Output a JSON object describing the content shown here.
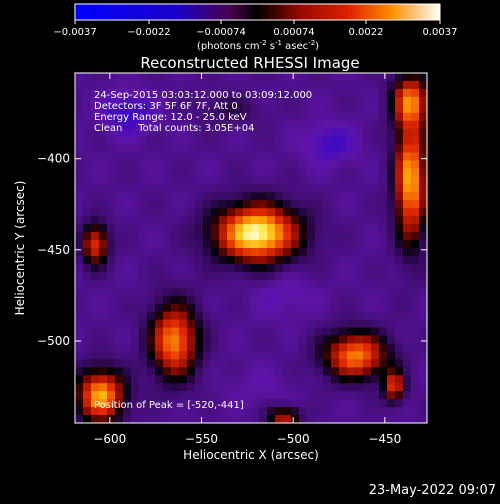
{
  "colorbar": {
    "ticks": [
      "-0.0037",
      "-0.0022",
      "-0.00074",
      "0.00074",
      "0.0022",
      "0.0037"
    ],
    "units_main": "(photons cm",
    "units_sup1": "-2",
    "units_mid": " s",
    "units_sup2": "-1",
    "units_end": " asec",
    "units_sup3": "-2",
    "units_close": ")"
  },
  "chart_data": {
    "type": "heatmap",
    "title": "Reconstructed RHESSI Image",
    "xlabel": "Heliocentric X (arcsec)",
    "ylabel": "Heliocentric Y (arcsec)",
    "xlim": [
      -619,
      -427
    ],
    "ylim": [
      -545,
      -353
    ],
    "value_range": [
      -0.0037,
      0.0037
    ],
    "xticks": [
      -600,
      -550,
      -500,
      -450
    ],
    "yticks": [
      -400,
      -450,
      -500
    ],
    "xtick_labels": [
      "−600",
      "−550",
      "−500",
      "−450"
    ],
    "ytick_labels": [
      "−400",
      "−450",
      "−500"
    ],
    "sources": [
      {
        "x": -520,
        "y": -441,
        "sx": 16,
        "sy": 11,
        "v": 0.0037
      },
      {
        "x": -436,
        "y": -412,
        "sx": 6,
        "sy": 24,
        "v": 0.0028
      },
      {
        "x": -436,
        "y": -368,
        "sx": 7,
        "sy": 10,
        "v": 0.0018
      },
      {
        "x": -565,
        "y": -500,
        "sx": 9,
        "sy": 14,
        "v": 0.0025
      },
      {
        "x": -466,
        "y": -508,
        "sx": 12,
        "sy": 9,
        "v": 0.0024
      },
      {
        "x": -608,
        "y": -447,
        "sx": 5,
        "sy": 8,
        "v": 0.0017
      },
      {
        "x": -605,
        "y": -530,
        "sx": 9,
        "sy": 10,
        "v": 0.0028
      },
      {
        "x": -445,
        "y": -525,
        "sx": 4,
        "sy": 6,
        "v": 0.0016
      },
      {
        "x": -505,
        "y": -542,
        "sx": 6,
        "sy": 4,
        "v": 0.0012
      },
      {
        "x": -590,
        "y": -375,
        "sx": 10,
        "sy": 8,
        "v": -0.0024
      },
      {
        "x": -480,
        "y": -392,
        "sx": 10,
        "sy": 8,
        "v": -0.0022
      },
      {
        "x": -505,
        "y": -475,
        "sx": 12,
        "sy": 9,
        "v": -0.0018
      },
      {
        "x": -520,
        "y": -525,
        "sx": 12,
        "sy": 8,
        "v": -0.0016
      },
      {
        "x": -535,
        "y": -373,
        "sx": 12,
        "sy": 6,
        "v": -0.0006
      }
    ],
    "info_lines": [
      "24-Sep-2015 03:03:12.000 to 03:09:12.000",
      "Detectors: 3F 5F 6F 7F, Att 0",
      "Energy Range: 12.0 - 25.0 keV",
      "Clean     Total counts: 3.05E+04"
    ],
    "peak_label": "Position of Peak = [-520,-441]"
  },
  "timestamp": "23-May-2022 09:07"
}
